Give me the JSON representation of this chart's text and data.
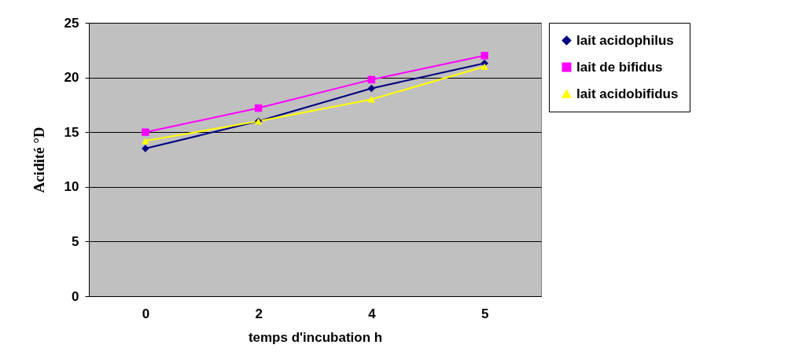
{
  "chart_data": {
    "type": "line",
    "xlabel": "temps d'incubation h",
    "ylabel": "Acidité °D",
    "categories": [
      "0",
      "2",
      "4",
      "5"
    ],
    "ylim": [
      0,
      25
    ],
    "yticks": [
      0,
      5,
      10,
      15,
      20,
      25
    ],
    "grid": "y",
    "legend": "right",
    "series": [
      {
        "name": "lait acidophilus",
        "color": "#000080",
        "marker": "diamond",
        "values": [
          13.5,
          16,
          19,
          21.3
        ]
      },
      {
        "name": "lait de bifidus",
        "color": "#ff00ff",
        "marker": "square",
        "values": [
          15,
          17.2,
          19.8,
          22
        ]
      },
      {
        "name": "lait acidobifidus",
        "color": "#ffff00",
        "marker": "triangle",
        "values": [
          14.2,
          16,
          18,
          21
        ]
      }
    ]
  }
}
